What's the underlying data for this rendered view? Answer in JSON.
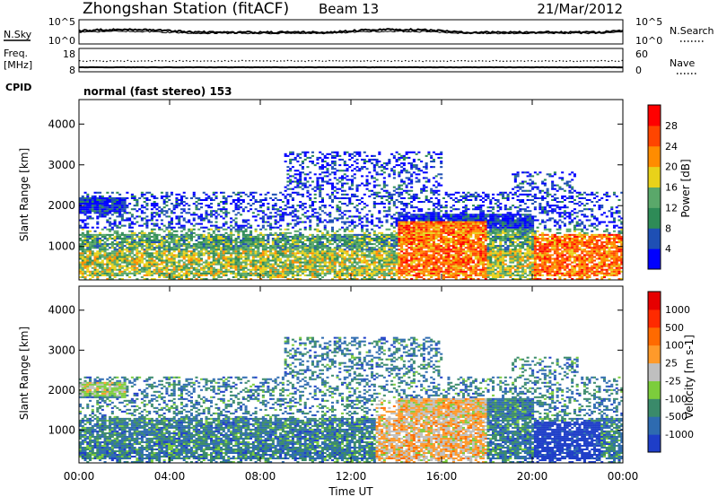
{
  "header": {
    "station": "Zhongshan Station (fitACF)",
    "beam": "Beam 13",
    "date": "21/Mar/2012"
  },
  "nsky_panel": {
    "left_label": "N.Sky",
    "right_label": "N.Search",
    "left_ticks": [
      "10^5",
      "10^0"
    ],
    "right_ticks": [
      "10^5",
      "10^0"
    ]
  },
  "freq_panel": {
    "left_label_1": "Freq.",
    "left_label_2": "[MHz]",
    "right_label": "Nave",
    "left_ticks": [
      "18",
      "8"
    ],
    "right_ticks": [
      "60",
      "0"
    ]
  },
  "cpid": {
    "label": "CPID",
    "mode": "normal (fast stereo) 153"
  },
  "chart_data": [
    {
      "type": "heatmap",
      "name": "power",
      "ylabel": "Slant Range [km]",
      "ylim": [
        180,
        4600
      ],
      "yticks": [
        1000,
        2000,
        3000,
        4000
      ],
      "ytick_labels": [
        "1000",
        "2000",
        "3000",
        "4000"
      ],
      "colorbar_label": "Power [dB]",
      "colorbar_ticks": [
        "28",
        "24",
        "20",
        "16",
        "12",
        "8",
        "4"
      ],
      "colors": [
        "#0000ff",
        "#1e4fb4",
        "#2e8b57",
        "#5aa86a",
        "#e8d21a",
        "#ff8c00",
        "#ff4500",
        "#ff0000"
      ]
    },
    {
      "type": "heatmap",
      "name": "velocity",
      "ylabel": "Slant Range [km]",
      "ylim": [
        180,
        4600
      ],
      "yticks": [
        1000,
        2000,
        3000,
        4000
      ],
      "ytick_labels": [
        "1000",
        "2000",
        "3000",
        "4000"
      ],
      "colorbar_label": "Velocity [m s-1]",
      "colorbar_ticks": [
        "1000",
        "500",
        "100",
        "25",
        "-25",
        "-100",
        "-500",
        "-1000"
      ],
      "colors": [
        "#1e3ec8",
        "#2e6bb0",
        "#3a8a6a",
        "#7ccd3c",
        "#bfbfbf",
        "#ff9a2a",
        "#ff6a00",
        "#ff2a00",
        "#e60000"
      ]
    }
  ],
  "x_axis": {
    "label": "Time UT",
    "ticks": [
      "00:00",
      "04:00",
      "08:00",
      "12:00",
      "16:00",
      "20:00",
      "00:00"
    ]
  }
}
